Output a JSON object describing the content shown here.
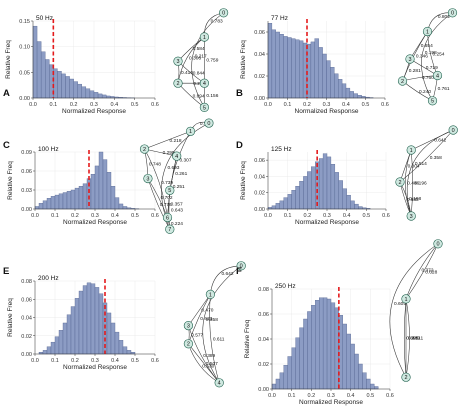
{
  "figure": {
    "common_xlabel": "Normalized Response",
    "common_ylabel": "Relative Freq"
  },
  "chart_data": [
    {
      "type": "bar",
      "panel": "A",
      "freq_label": "50 Hz",
      "xlabel": "Normalized Response",
      "ylabel": "Relative Freq",
      "xlim": [
        0,
        0.6
      ],
      "ylim": [
        0,
        0.15
      ],
      "xticks": [
        "0.0",
        "0.1",
        "0.2",
        "0.3",
        "0.4",
        "0.5",
        "0.6"
      ],
      "yticks": [
        "0.00",
        "0.05",
        "0.10",
        "0.15"
      ],
      "bin_start": 0,
      "bin_width": 0.02,
      "values": [
        0.14,
        0.11,
        0.09,
        0.075,
        0.065,
        0.057,
        0.052,
        0.047,
        0.042,
        0.037,
        0.032,
        0.027,
        0.022,
        0.018,
        0.014,
        0.011,
        0.008,
        0.006,
        0.004,
        0.003,
        0.002,
        0.0015,
        0.001,
        0.0006,
        0.0003
      ],
      "median": 0.1,
      "tree": {
        "nodes": [
          {
            "id": "0",
            "label": "0"
          },
          {
            "id": "1",
            "label": "1"
          },
          {
            "id": "2",
            "label": "2"
          },
          {
            "id": "3",
            "label": "3"
          },
          {
            "id": "4",
            "label": "4"
          },
          {
            "id": "5",
            "label": "5"
          }
        ],
        "edges": [
          {
            "label": "0.783"
          },
          {
            "label": "0.217"
          },
          {
            "label": "0.584"
          },
          {
            "label": "0.759"
          },
          {
            "label": "0.416"
          },
          {
            "label": "0.844"
          },
          {
            "label": "0.241"
          },
          {
            "label": "0.156"
          },
          {
            "label": "0.694"
          },
          {
            "label": "0.306"
          }
        ]
      }
    },
    {
      "type": "bar",
      "panel": "B",
      "freq_label": "77 Hz",
      "xlabel": "Normalized Response",
      "ylabel": "Relative Freq",
      "xlim": [
        0,
        0.6
      ],
      "ylim": [
        0,
        0.07
      ],
      "xticks": [
        "0.0",
        "0.1",
        "0.2",
        "0.3",
        "0.4",
        "0.5",
        "0.6"
      ],
      "yticks": [
        "0.00",
        "0.02",
        "0.04",
        "0.06"
      ],
      "bin_start": 0,
      "bin_width": 0.02,
      "values": [
        0.068,
        0.062,
        0.06,
        0.058,
        0.056,
        0.055,
        0.054,
        0.053,
        0.052,
        0.05,
        0.049,
        0.051,
        0.054,
        0.046,
        0.04,
        0.034,
        0.028,
        0.022,
        0.017,
        0.013,
        0.009,
        0.006,
        0.004,
        0.0025,
        0.0015,
        0.0008,
        0.0004
      ],
      "median": 0.2,
      "tree": {
        "nodes": [
          {
            "id": "0",
            "label": "0"
          },
          {
            "id": "1",
            "label": "1"
          },
          {
            "id": "2",
            "label": "2"
          },
          {
            "id": "3",
            "label": "3"
          },
          {
            "id": "4",
            "label": "4"
          },
          {
            "id": "5",
            "label": "5"
          }
        ],
        "edges": [
          {
            "label": "0.802"
          },
          {
            "label": "0.198"
          },
          {
            "label": "0.654"
          },
          {
            "label": "0.346"
          },
          {
            "label": "0.719"
          },
          {
            "label": "0.254"
          },
          {
            "label": "0.281"
          },
          {
            "label": "0.761"
          },
          {
            "label": "0.760"
          },
          {
            "label": "0.240"
          }
        ]
      }
    },
    {
      "type": "bar",
      "panel": "C",
      "freq_label": "100 Hz",
      "xlabel": "Normalized Response",
      "ylabel": "Relative Freq",
      "xlim": [
        0,
        0.6
      ],
      "ylim": [
        0,
        0.09
      ],
      "xticks": [
        "0.0",
        "0.1",
        "0.2",
        "0.3",
        "0.4",
        "0.5",
        "0.6"
      ],
      "yticks": [
        "0.00",
        "0.03",
        "0.06",
        "0.09"
      ],
      "bin_start": 0,
      "bin_width": 0.02,
      "values": [
        0.004,
        0.009,
        0.013,
        0.017,
        0.02,
        0.022,
        0.024,
        0.026,
        0.028,
        0.03,
        0.033,
        0.036,
        0.04,
        0.048,
        0.055,
        0.068,
        0.09,
        0.078,
        0.058,
        0.036,
        0.018,
        0.008,
        0.004,
        0.002,
        0.001,
        0.0005
      ],
      "median": 0.27,
      "tree": {
        "nodes": [
          {
            "id": "0",
            "label": "0"
          },
          {
            "id": "1",
            "label": "1"
          },
          {
            "id": "2",
            "label": "2"
          },
          {
            "id": "3",
            "label": "3"
          },
          {
            "id": "4",
            "label": "4"
          },
          {
            "id": "5",
            "label": "5"
          },
          {
            "id": "6",
            "label": "6"
          },
          {
            "id": "7",
            "label": "7"
          }
        ],
        "edges": [
          {
            "label": "0.782"
          },
          {
            "label": "0.218"
          },
          {
            "label": "0.307"
          },
          {
            "label": "0.693"
          },
          {
            "label": "0.748"
          },
          {
            "label": "0.299"
          },
          {
            "label": "0.261"
          },
          {
            "label": "0.739"
          },
          {
            "label": "0.251"
          },
          {
            "label": "0.702"
          },
          {
            "label": "0.357"
          },
          {
            "label": "0.776"
          },
          {
            "label": "0.224"
          },
          {
            "label": "0.643"
          }
        ]
      }
    },
    {
      "type": "bar",
      "panel": "D",
      "freq_label": "125 Hz",
      "xlabel": "Normalized Response",
      "ylabel": "Relative Freq",
      "xlim": [
        0,
        0.6
      ],
      "ylim": [
        0,
        0.07
      ],
      "xticks": [
        "0.0",
        "0.1",
        "0.2",
        "0.3",
        "0.4",
        "0.5",
        "0.6"
      ],
      "yticks": [
        "0.00",
        "0.02",
        "0.04",
        "0.06"
      ],
      "bin_start": 0,
      "bin_width": 0.02,
      "values": [
        0.002,
        0.004,
        0.007,
        0.01,
        0.014,
        0.018,
        0.023,
        0.028,
        0.034,
        0.04,
        0.046,
        0.052,
        0.058,
        0.062,
        0.068,
        0.064,
        0.055,
        0.045,
        0.035,
        0.025,
        0.017,
        0.01,
        0.006,
        0.003,
        0.0015,
        0.0008
      ],
      "median": 0.25,
      "tree": {
        "nodes": [
          {
            "id": "0",
            "label": "0"
          },
          {
            "id": "1",
            "label": "1"
          },
          {
            "id": "2",
            "label": "2"
          },
          {
            "id": "3",
            "label": "3"
          }
        ],
        "edges": [
          {
            "label": "0.642"
          },
          {
            "label": "0.358"
          },
          {
            "label": "0.804"
          },
          {
            "label": "0.514"
          },
          {
            "label": "0.196"
          },
          {
            "label": "0.832"
          },
          {
            "label": "0.486"
          },
          {
            "label": "0.168"
          }
        ]
      }
    },
    {
      "type": "bar",
      "panel": "E",
      "freq_label": "200 Hz",
      "xlabel": "Normalized Response",
      "ylabel": "Relative Freq",
      "xlim": [
        0,
        0.6
      ],
      "ylim": [
        0,
        0.08
      ],
      "xticks": [
        "0.0",
        "0.1",
        "0.2",
        "0.3",
        "0.4",
        "0.5",
        "0.6"
      ],
      "yticks": [
        "0.00",
        "0.02",
        "0.04",
        "0.06",
        "0.08"
      ],
      "bin_start": 0.02,
      "bin_width": 0.02,
      "values": [
        0.002,
        0.004,
        0.008,
        0.013,
        0.019,
        0.026,
        0.034,
        0.043,
        0.052,
        0.061,
        0.069,
        0.075,
        0.078,
        0.077,
        0.073,
        0.066,
        0.056,
        0.045,
        0.034,
        0.024,
        0.015,
        0.008,
        0.004,
        0.002
      ],
      "median": 0.35,
      "tree": {
        "nodes": [
          {
            "id": "0",
            "label": "0"
          },
          {
            "id": "1",
            "label": "1"
          },
          {
            "id": "2",
            "label": "2"
          },
          {
            "id": "3",
            "label": "3"
          },
          {
            "id": "4",
            "label": "4"
          }
        ],
        "edges": [
          {
            "label": "0.642"
          },
          {
            "label": "0.358"
          },
          {
            "label": "0.470"
          },
          {
            "label": "0.423"
          },
          {
            "label": "0.611"
          },
          {
            "label": "0.577"
          },
          {
            "label": "0.507"
          },
          {
            "label": "0.389"
          },
          {
            "label": "0.530"
          }
        ]
      }
    },
    {
      "type": "bar",
      "panel": "F",
      "freq_label": "250 Hz",
      "xlabel": "Normalized Response",
      "ylabel": "Relative Freq",
      "xlim": [
        0,
        0.6
      ],
      "ylim": [
        0,
        0.08
      ],
      "xticks": [
        "0.0",
        "0.1",
        "0.2",
        "0.3",
        "0.4",
        "0.5",
        "0.6"
      ],
      "yticks": [
        "0.00",
        "0.02",
        "0.04",
        "0.06",
        "0.08"
      ],
      "bin_start": 0,
      "bin_width": 0.02,
      "values": [
        0.004,
        0.008,
        0.013,
        0.019,
        0.026,
        0.033,
        0.041,
        0.049,
        0.056,
        0.062,
        0.067,
        0.071,
        0.073,
        0.073,
        0.072,
        0.069,
        0.065,
        0.059,
        0.052,
        0.044,
        0.036,
        0.028,
        0.02,
        0.013,
        0.008,
        0.004,
        0.002
      ],
      "median": 0.34,
      "tree": {
        "nodes": [
          {
            "id": "0",
            "label": "0"
          },
          {
            "id": "1",
            "label": "1"
          },
          {
            "id": "2",
            "label": "2"
          }
        ],
        "edges": [
          {
            "label": "0.628"
          },
          {
            "label": "0.372"
          },
          {
            "label": "0.489"
          },
          {
            "label": "0.605"
          },
          {
            "label": "0.511"
          },
          {
            "label": "0.395"
          }
        ]
      }
    }
  ]
}
